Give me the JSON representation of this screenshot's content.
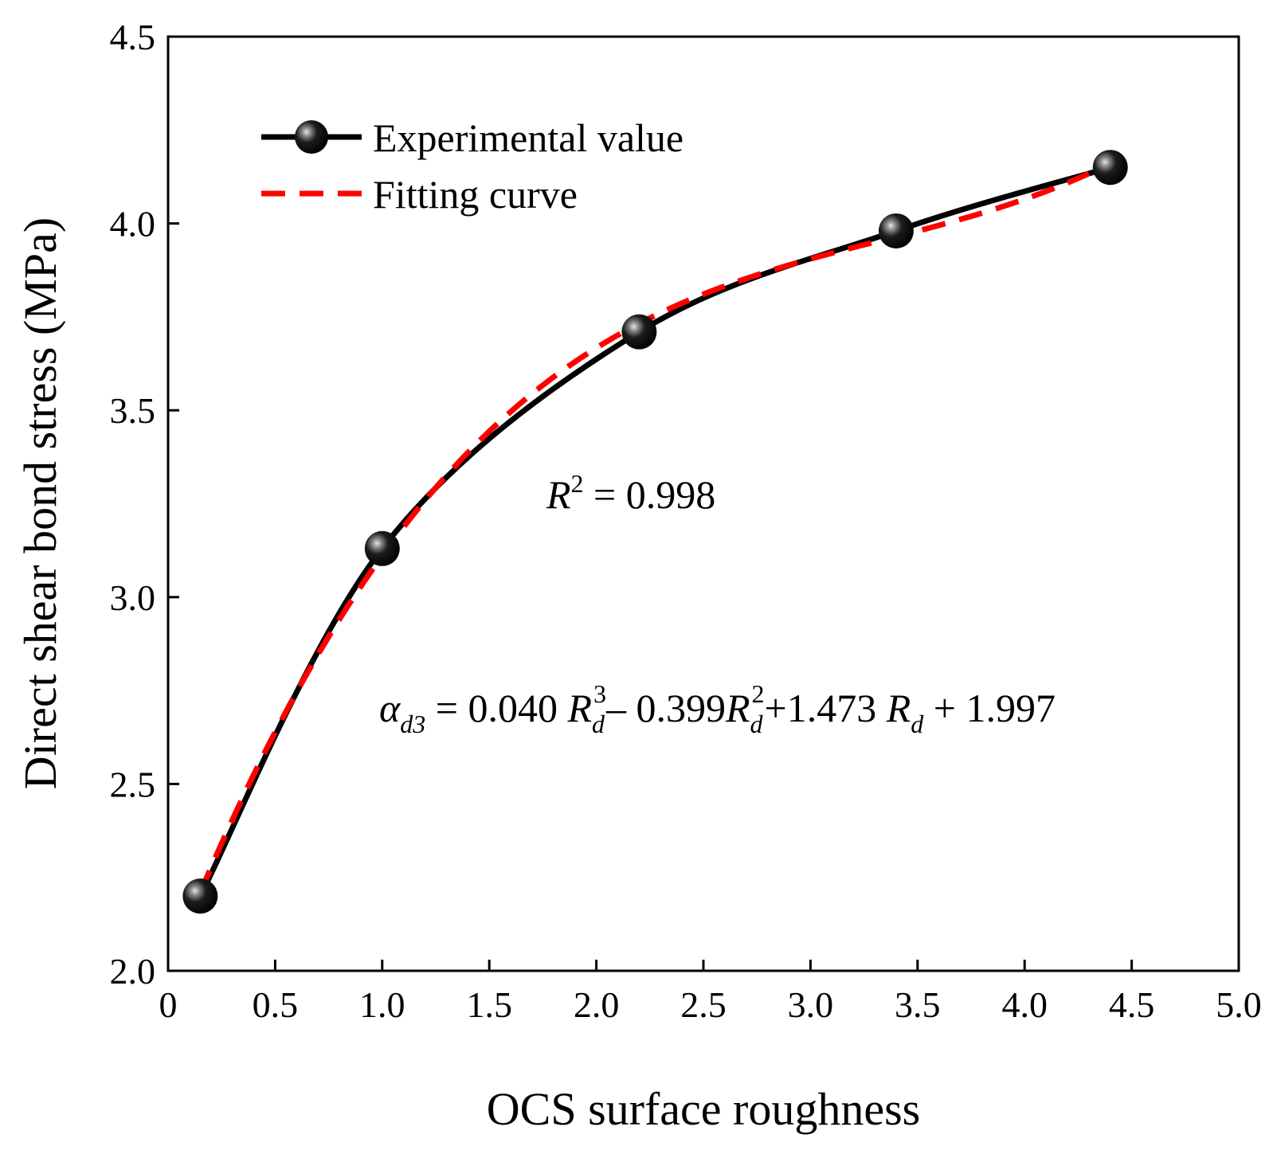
{
  "chart_data": {
    "type": "line",
    "title": "",
    "xlabel": "OCS surface roughness",
    "ylabel": "Direct shear bond stress (MPa)",
    "xlim": [
      0,
      5.0
    ],
    "ylim": [
      2.0,
      4.5
    ],
    "xticks": [
      "0",
      "0.5",
      "1.0",
      "1.5",
      "2.0",
      "2.5",
      "3.0",
      "3.5",
      "4.0",
      "4.5",
      "5.0"
    ],
    "yticks": [
      "2.0",
      "2.5",
      "3.0",
      "3.5",
      "4.0",
      "4.5"
    ],
    "grid": false,
    "legend_position": "top-left",
    "series": [
      {
        "name": "Experimental value",
        "style": "solid line with sphere markers",
        "color": "#000000",
        "x": [
          0.15,
          1.0,
          2.2,
          3.4,
          4.4
        ],
        "y": [
          2.2,
          3.13,
          3.71,
          3.98,
          4.15
        ]
      },
      {
        "name": "Fitting curve",
        "style": "dashed",
        "color": "#ff0000",
        "equation": {
          "a3": 0.04,
          "a2": -0.399,
          "a1": 1.473,
          "a0": 1.997
        },
        "x_range": [
          0.15,
          4.3
        ]
      }
    ],
    "annotations": {
      "r2": {
        "symbol": "R",
        "sup": "2",
        "text": " = 0.998"
      },
      "equation": {
        "lhs": "α",
        "lhs_sub": "d3",
        "part1": " = 0.040 ",
        "var": "R",
        "var_sub": "d",
        "sup3": "3",
        "part2": "– 0.399",
        "sup2": "2",
        "part3": "+1.473 ",
        "part4": " + 1.997"
      }
    }
  }
}
